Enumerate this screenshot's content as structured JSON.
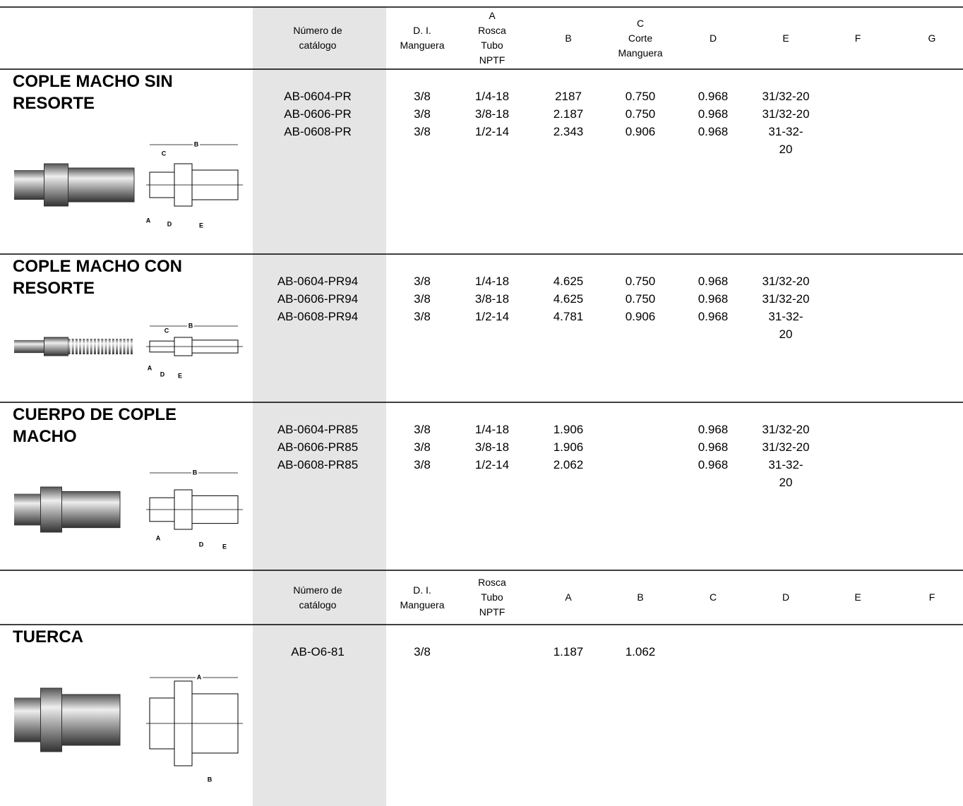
{
  "header": {
    "columns": [
      [
        "Número de catálogo"
      ],
      [
        "D. I.",
        "Manguera"
      ],
      [
        "A",
        "Rosca",
        "Tubo",
        "NPTF"
      ],
      [
        "B"
      ],
      [
        "C",
        "Corte",
        "Manguera"
      ],
      [
        "D"
      ],
      [
        "E"
      ],
      [
        "F"
      ],
      [
        "G"
      ]
    ]
  },
  "sections": [
    {
      "title": "COPLE MACHO SIN RESORTE",
      "rows": [
        [
          "AB-0604-PR",
          "3/8",
          "1/4-18",
          "2187",
          "0.750",
          "0.968",
          "31/32-20"
        ],
        [
          "AB-0606-PR",
          "3/8",
          "3/8-18",
          "2.187",
          "0.750",
          "0.968",
          "31/32-20"
        ],
        [
          "AB-0608-PR",
          "3/8",
          "1/2-14",
          "2.343",
          "0.906",
          "0.968",
          "31-32-20"
        ]
      ],
      "diagram_labels": [
        "B",
        "C",
        "A",
        "D",
        "E"
      ]
    },
    {
      "title": "COPLE MACHO CON RESORTE",
      "rows": [
        [
          "AB-0604-PR94",
          "3/8",
          "1/4-18",
          "4.625",
          "0.750",
          "0.968",
          "31/32-20"
        ],
        [
          "AB-0606-PR94",
          "3/8",
          "3/8-18",
          "4.625",
          "0.750",
          "0.968",
          "31/32-20"
        ],
        [
          "AB-0608-PR94",
          "3/8",
          "1/2-14",
          "4.781",
          "0.906",
          "0.968",
          "31-32-20"
        ]
      ],
      "diagram_labels": [
        "B",
        "C",
        "A",
        "D",
        "E"
      ]
    },
    {
      "title": "CUERPO DE COPLE MACHO",
      "rows": [
        [
          "AB-0604-PR85",
          "3/8",
          "1/4-18",
          "1.906",
          null,
          "0.968",
          "31/32-20"
        ],
        [
          "AB-0606-PR85",
          "3/8",
          "3/8-18",
          "1.906",
          null,
          "0.968",
          "31/32-20"
        ],
        [
          "AB-0608-PR85",
          "3/8",
          "1/2-14",
          "2.062",
          null,
          "0.968",
          "31-32-20"
        ]
      ],
      "diagram_labels": [
        "B",
        "A",
        "D",
        "E"
      ]
    },
    {
      "title": "TUERCA",
      "rows": [
        [
          "AB-O6-81",
          "3/8",
          null,
          "1.187",
          "1.062"
        ]
      ],
      "diagram_labels": [
        "A",
        "B"
      ]
    }
  ],
  "header2": {
    "columns": [
      [
        "Número de catálogo"
      ],
      [
        "D. I.",
        "Manguera"
      ],
      [
        "Rosca",
        "Tubo",
        "NPTF"
      ],
      [
        "A"
      ],
      [
        "B"
      ],
      [
        "C"
      ],
      [
        "D"
      ],
      [
        "E"
      ],
      [
        "F"
      ]
    ]
  }
}
